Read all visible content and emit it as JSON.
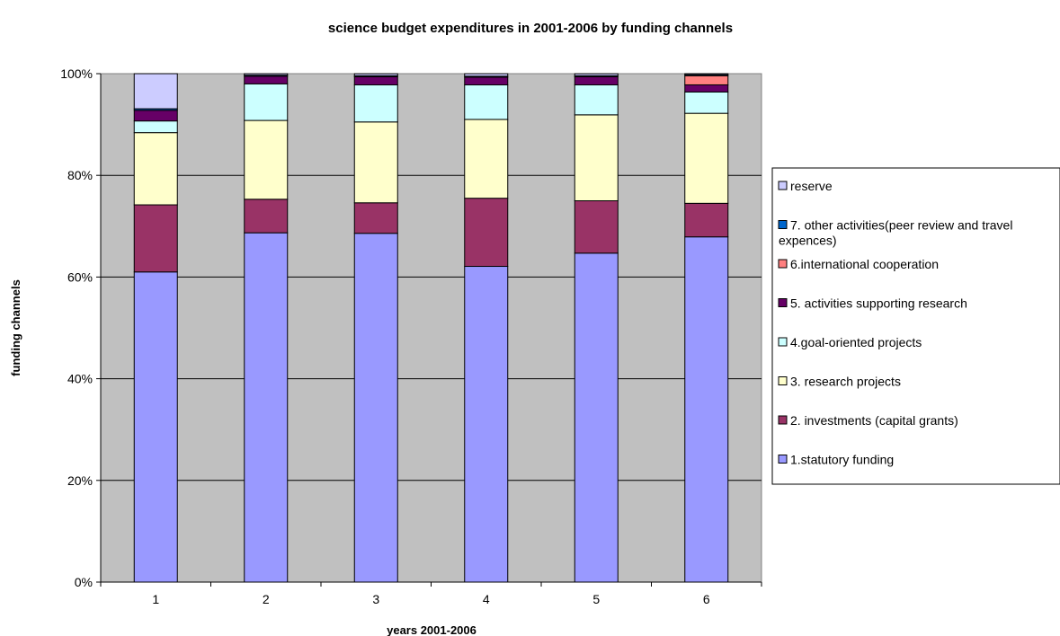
{
  "chart_data": {
    "type": "bar",
    "stacked": true,
    "percent": true,
    "title": "science budget expenditures in 2001-2006 by funding channels",
    "xlabel": "years 2001-2006",
    "ylabel": "funding channels",
    "categories": [
      "1",
      "2",
      "3",
      "4",
      "5",
      "6"
    ],
    "ylim": [
      0,
      100
    ],
    "yticks": [
      "0%",
      "20%",
      "40%",
      "60%",
      "80%",
      "100%"
    ],
    "grid": true,
    "legend_position": "right",
    "plot_background": "#C0C0C0",
    "series": [
      {
        "name": "1.statutory funding",
        "color": "#9999FF",
        "values": [
          61.0,
          68.7,
          68.6,
          62.1,
          64.7,
          67.9
        ]
      },
      {
        "name": "2. investments (capital grants)",
        "color": "#993366",
        "values": [
          13.2,
          6.6,
          6.0,
          13.4,
          10.3,
          6.6
        ]
      },
      {
        "name": "3. research projects",
        "color": "#FFFFCC",
        "values": [
          14.2,
          15.5,
          15.9,
          15.5,
          16.9,
          17.7
        ]
      },
      {
        "name": "4.goal-oriented projects",
        "color": "#CCFFFF",
        "values": [
          2.3,
          7.2,
          7.3,
          6.8,
          5.9,
          4.2
        ]
      },
      {
        "name": "5. activities supporting research",
        "color": "#660066",
        "values": [
          2.1,
          1.5,
          1.6,
          1.5,
          1.6,
          1.4
        ]
      },
      {
        "name": "6.international cooperation",
        "color": "#FF8080",
        "values": [
          0.0,
          0.0,
          0.0,
          0.0,
          0.0,
          1.8
        ]
      },
      {
        "name": "7. other activities(peer review and travel expences)",
        "color": "#0066CC",
        "values": [
          0.3,
          0.2,
          0.2,
          0.2,
          0.2,
          0.2
        ]
      },
      {
        "name": "reserve",
        "color": "#CCCCFF",
        "values": [
          6.9,
          0.3,
          0.4,
          0.5,
          0.4,
          0.2
        ]
      }
    ]
  }
}
